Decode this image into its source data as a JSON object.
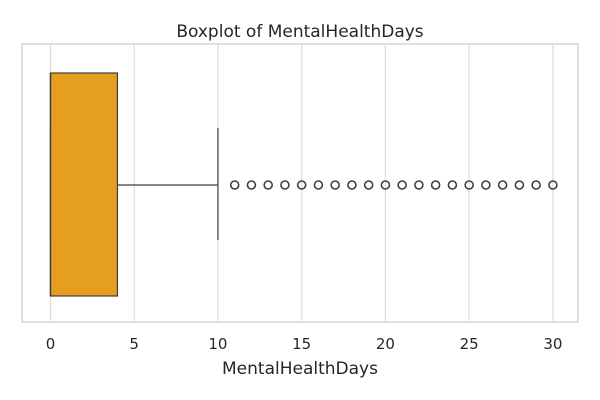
{
  "chart_data": {
    "type": "boxplot",
    "title": "Boxplot of MentalHealthDays",
    "xlabel": "MentalHealthDays",
    "ylabel": "",
    "xlim": [
      -1.7,
      31.5
    ],
    "xticks": [
      0,
      5,
      10,
      15,
      20,
      25,
      30
    ],
    "xtick_labels": [
      "0",
      "5",
      "10",
      "15",
      "20",
      "25",
      "30"
    ],
    "grid": "vertical",
    "box": {
      "whisker_low": 0,
      "q1": 0,
      "median": 0,
      "q3": 4,
      "whisker_high": 10,
      "fill_color": "#e59e1f",
      "edge_color": "#3f3f3f"
    },
    "outliers": [
      11,
      12,
      13,
      14,
      15,
      16,
      17,
      18,
      19,
      20,
      21,
      22,
      23,
      24,
      25,
      26,
      27,
      28,
      29,
      30
    ]
  }
}
